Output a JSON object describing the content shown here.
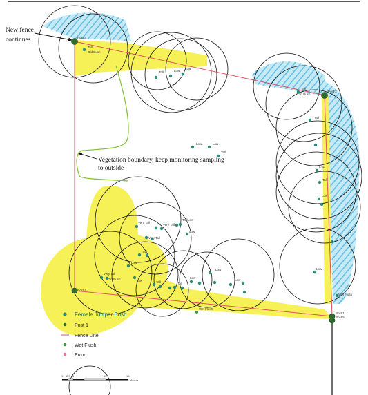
{
  "annotations": {
    "new_fence_line1": "New fence",
    "new_fence_line2": "continues",
    "vegetation_line1": "Vegetation boundary, keep monitoring sampling",
    "vegetation_line2": "to outside"
  },
  "posts": [
    {
      "label": "Post 3"
    },
    {
      "label": "Post 2"
    },
    {
      "label": "Post 4"
    },
    {
      "label": "Post 5"
    },
    {
      "label": "Post 1"
    }
  ],
  "bush_labels": {
    "tall": "Tall",
    "low": "Low",
    "very_tall": "Very Tall",
    "old_bush": "Old Bush",
    "tall_low": "Tall/Low",
    "wet_flush": "Wet Flush"
  },
  "legend": {
    "items": [
      {
        "label": "Female Juniper Bush",
        "color": "#2e8b7a"
      },
      {
        "label": "Post 1",
        "color": "#2e6e2e"
      },
      {
        "label": "Fence Line",
        "color": "#e05060"
      },
      {
        "label": "Wet Flush",
        "color": "#3a9a3a"
      },
      {
        "label": "Error",
        "color": "#e07aa0"
      }
    ]
  },
  "scale": {
    "ticks": [
      "0",
      "2.5",
      "5",
      "10",
      "15"
    ],
    "unit": "Meters"
  },
  "colors": {
    "fence": "#e05060",
    "yellow_zone": "#f4ee3a",
    "blue_zone": "#6fc8ea",
    "post": "#2e6e2e",
    "bush": "#2e8b7a",
    "vegetation_boundary": "#7fbf2a"
  }
}
